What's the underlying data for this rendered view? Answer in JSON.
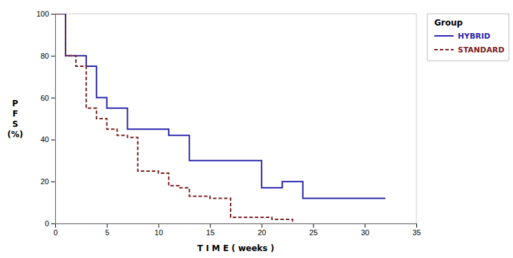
{
  "chart_data": {
    "type": "step",
    "x_label": "T I M E  ( weeks )",
    "y_label": "P\nF\nS\n(%)",
    "legend_title": "Group",
    "legend": "right",
    "grid": false,
    "xlim": [
      0,
      35
    ],
    "ylim": [
      0,
      100
    ],
    "xticks": [
      0,
      5,
      10,
      15,
      20,
      25,
      30,
      35
    ],
    "yticks": [
      0,
      20,
      40,
      60,
      80,
      100
    ],
    "series": [
      {
        "name": "HYBRID",
        "color": "#2222aa",
        "line_style": "solid",
        "x": [
          0,
          1,
          1,
          3,
          3,
          4,
          4,
          5,
          5,
          7,
          7,
          11,
          11,
          13,
          13,
          20,
          20,
          22,
          22,
          24,
          24,
          31,
          31,
          32
        ],
        "values": [
          100,
          100,
          80,
          80,
          75,
          75,
          60,
          60,
          55,
          55,
          45,
          45,
          42,
          42,
          30,
          30,
          17,
          17,
          20,
          20,
          12,
          12,
          12,
          12
        ]
      },
      {
        "name": "STANDARD",
        "color": "#7a1a1a",
        "line_style": "dashed",
        "x": [
          0,
          1,
          1,
          2,
          2,
          3,
          3,
          4,
          4,
          5,
          5,
          6,
          6,
          7,
          7,
          8,
          8,
          10,
          10,
          11,
          11,
          12,
          12,
          13,
          13,
          15,
          15,
          17,
          17,
          19,
          19,
          21,
          21,
          22,
          22,
          23,
          23
        ],
        "values": [
          100,
          100,
          80,
          80,
          75,
          75,
          55,
          55,
          50,
          50,
          45,
          45,
          42,
          42,
          41,
          41,
          25,
          25,
          24,
          24,
          18,
          18,
          17,
          17,
          13,
          13,
          12,
          12,
          3,
          3,
          3,
          3,
          2,
          2,
          2,
          2,
          0
        ]
      }
    ]
  }
}
